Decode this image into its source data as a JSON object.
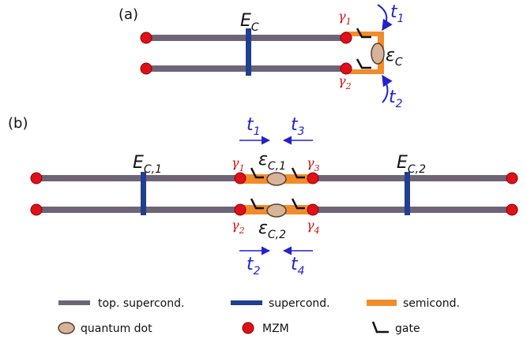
{
  "panels": {
    "a": {
      "label": "(a)",
      "charging_energy": {
        "main": "E",
        "sub": "C"
      },
      "dot_energy": {
        "main": "ε",
        "sub": "C"
      },
      "mzm_labels": [
        {
          "main": "γ",
          "sub": "1"
        },
        {
          "main": "γ",
          "sub": "2"
        }
      ],
      "tunnel_labels": [
        {
          "main": "t",
          "sub": "1"
        },
        {
          "main": "t",
          "sub": "2"
        }
      ]
    },
    "b": {
      "label": "(b)",
      "charging_energies": [
        {
          "main": "E",
          "sub": "C,1"
        },
        {
          "main": "E",
          "sub": "C,2"
        }
      ],
      "dot_energies": [
        {
          "main": "ε",
          "sub": "C,1"
        },
        {
          "main": "ε",
          "sub": "C,2"
        }
      ],
      "mzm_labels": [
        {
          "main": "γ",
          "sub": "1"
        },
        {
          "main": "γ",
          "sub": "3"
        },
        {
          "main": "γ",
          "sub": "2"
        },
        {
          "main": "γ",
          "sub": "4"
        }
      ],
      "tunnel_labels": [
        {
          "main": "t",
          "sub": "1"
        },
        {
          "main": "t",
          "sub": "3"
        },
        {
          "main": "t",
          "sub": "2"
        },
        {
          "main": "t",
          "sub": "4"
        }
      ]
    }
  },
  "legend": {
    "topological_superconductor": "top. supercond.",
    "superconductor": "supercond.",
    "semiconductor": "semicond.",
    "quantum_dot": "quantum dot",
    "mzm": "MZM",
    "gate": "gate"
  },
  "colors": {
    "wire": "#6e6478",
    "superconductor": "#1f3f8f",
    "semiconductor": "#f28c2a",
    "mzm_fill": "#e0101a",
    "mzm_stroke": "#8a0000",
    "dot_fill": "#d6b49a",
    "dot_stroke": "#5a3e2e",
    "tunnel": "#2222cc",
    "gamma": "#cc1111",
    "text": "#111111"
  }
}
